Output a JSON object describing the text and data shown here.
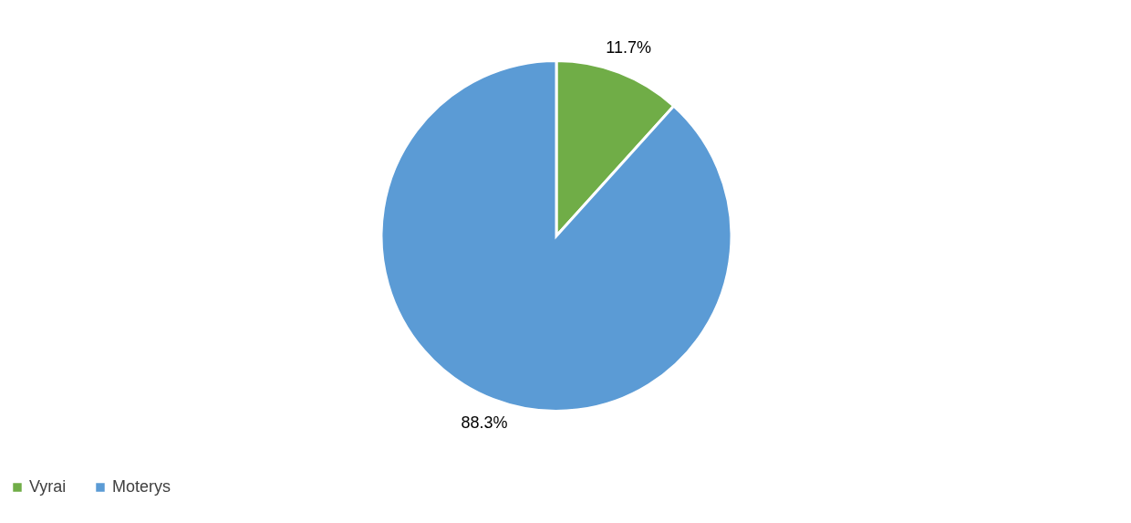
{
  "chart_data": {
    "type": "pie",
    "categories": [
      "Vyrai",
      "Moterys"
    ],
    "values": [
      11.7,
      88.3
    ],
    "colors": [
      "#70ad47",
      "#5b9bd5"
    ],
    "value_labels": [
      "11.7%",
      "88.3%"
    ],
    "legend": "bottom"
  }
}
